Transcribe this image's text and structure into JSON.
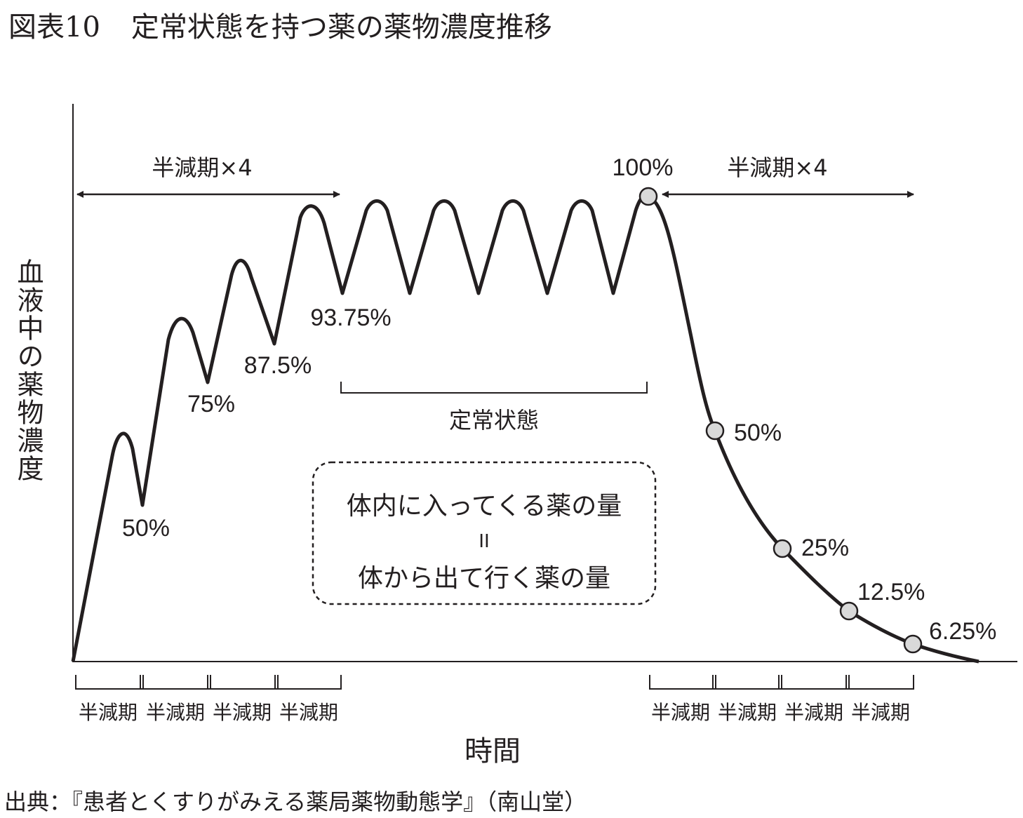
{
  "title": {
    "figure_no": "図表10",
    "text": "定常状態を持つ薬の薬物濃度推移"
  },
  "source": "出典：『患者とくすりがみえる薬局薬物動態学』（南山堂）",
  "axes": {
    "y_label": "血液中の薬物濃度",
    "x_label": "時間"
  },
  "arrows": {
    "left_label": "半減期×4",
    "right_label": "半減期×4"
  },
  "steady_state_label": "定常状態",
  "balance_box": {
    "line1": "体内に入ってくる薬の量",
    "equals": "II",
    "line2": "体から出て行く薬の量"
  },
  "trough_labels": [
    "50%",
    "75%",
    "87.5%",
    "93.75%"
  ],
  "peak_label": "100%",
  "decay_labels": [
    "50%",
    "25%",
    "12.5%",
    "6.25%"
  ],
  "half_life_ticks_left": [
    "半減期",
    "半減期",
    "半減期",
    "半減期"
  ],
  "half_life_ticks_right": [
    "半減期",
    "半減期",
    "半減期",
    "半減期"
  ],
  "colors": {
    "line": "#231f20",
    "marker_fill": "#d9d9d9",
    "background": "#ffffff"
  }
}
